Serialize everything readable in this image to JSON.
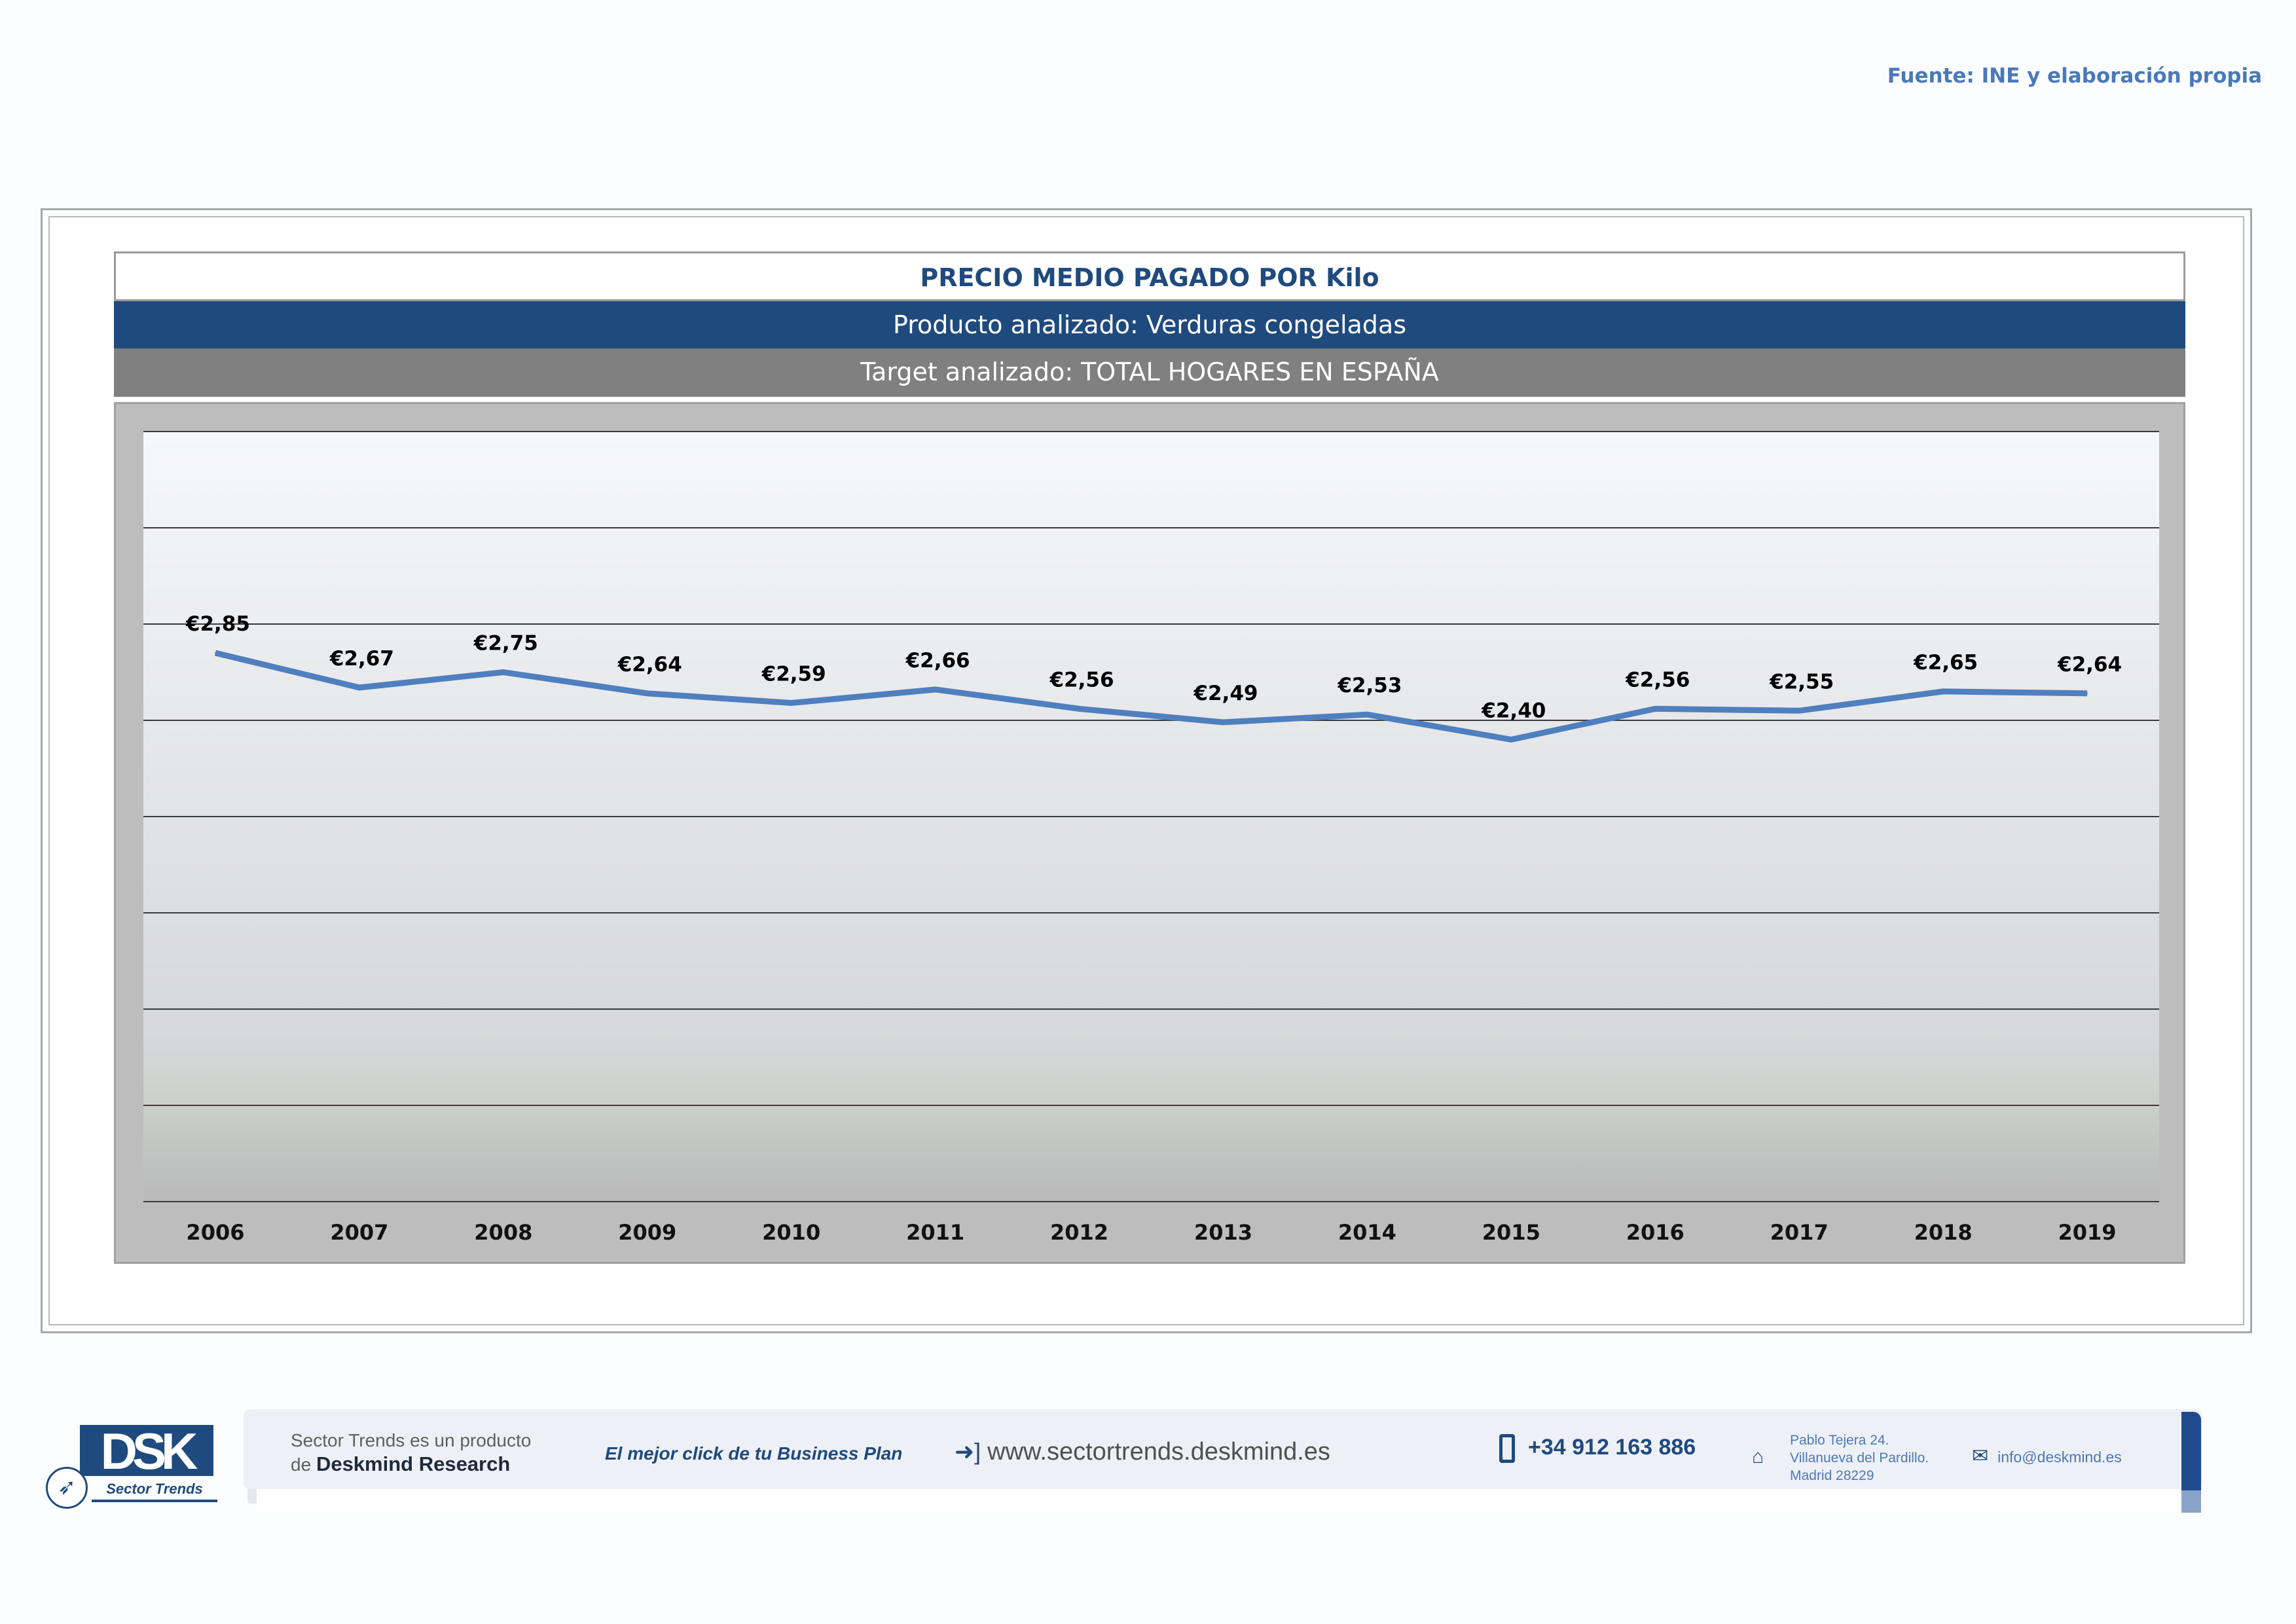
{
  "source_note": "Fuente: INE y elaboración propia",
  "header": {
    "title": "PRECIO MEDIO PAGADO POR Kilo",
    "product": "Producto analizado: Verduras congeladas",
    "target": "Target analizado: TOTAL HOGARES EN ESPAÑA"
  },
  "chart_data": {
    "type": "line",
    "categories": [
      "2006",
      "2007",
      "2008",
      "2009",
      "2010",
      "2011",
      "2012",
      "2013",
      "2014",
      "2015",
      "2016",
      "2017",
      "2018",
      "2019"
    ],
    "series": [
      {
        "values": [
          2.85,
          2.67,
          2.75,
          2.64,
          2.59,
          2.66,
          2.56,
          2.49,
          2.53,
          2.4,
          2.56,
          2.55,
          2.65,
          2.64
        ],
        "labels": [
          "€2,85",
          "€2,67",
          "€2,75",
          "€2,64",
          "€2,59",
          "€2,66",
          "€2,56",
          "€2,49",
          "€2,53",
          "€2,40",
          "€2,56",
          "€2,55",
          "€2,65",
          "€2,64"
        ]
      }
    ],
    "ylim": [
      0,
      4
    ],
    "grid": true,
    "line_color": "#4f7fbf"
  },
  "footer": {
    "logo_text": "DSK",
    "logo_sub": "Sector Trends",
    "tagline_line1": "Sector Trends es un producto",
    "tagline_line2_prefix": "de",
    "tagline_line2_brand": "Deskmind Research",
    "slogan": "El mejor click de tu Business Plan",
    "website": "www.sectortrends.deskmind.es",
    "phone": "+34 912 163 886",
    "address": "Pablo Tejera 24.\nVillanueva del Pardillo.\nMadrid 28229",
    "email": "info@deskmind.es"
  }
}
